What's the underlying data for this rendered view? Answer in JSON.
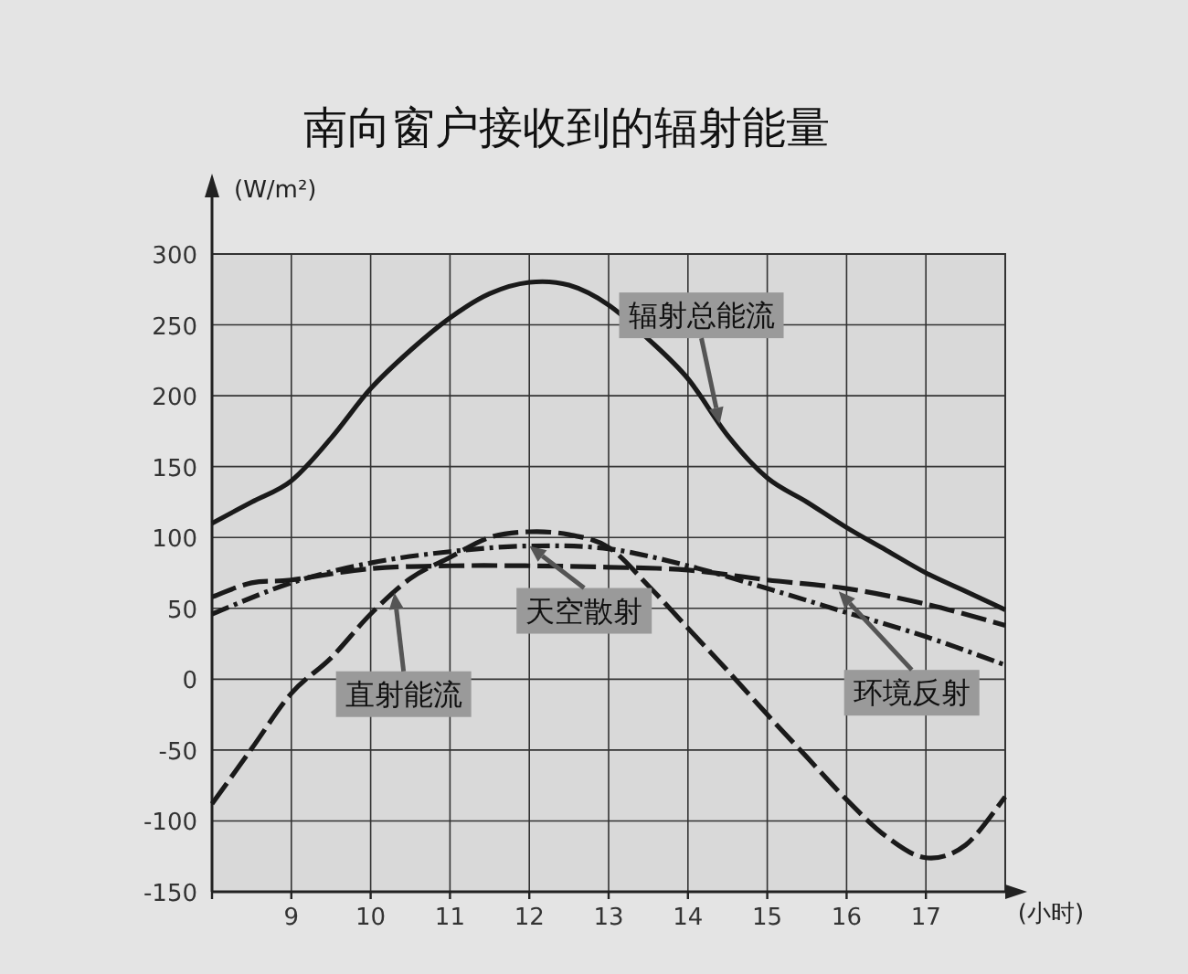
{
  "chart_data": {
    "type": "line",
    "title": "南向窗户接收到的辐射能量",
    "xlabel": "(小时)",
    "ylabel": "(W/m²)",
    "xlim": [
      8,
      18
    ],
    "ylim": [
      -150,
      300
    ],
    "xticks": [
      {
        "value": 8,
        "label": null
      },
      9,
      10,
      11,
      12,
      13,
      14,
      15,
      16,
      17
    ],
    "yticks": [
      -150,
      -100,
      -50,
      0,
      50,
      100,
      150,
      200,
      250,
      300
    ],
    "grid": true,
    "series": [
      {
        "color": "#1a1a1a",
        "line_style": "solid",
        "x": [
          8,
          8.5,
          9,
          9.5,
          10,
          10.5,
          11,
          11.5,
          12,
          12.5,
          13,
          13.5,
          14,
          14.5,
          15,
          15.5,
          16,
          16.5,
          17,
          17.5,
          18
        ],
        "values": [
          110,
          125,
          140,
          170,
          205,
          232,
          255,
          272,
          280,
          278,
          264,
          240,
          212,
          172,
          142,
          125,
          107,
          91,
          75,
          62,
          49
        ]
      },
      {
        "color": "#1a1a1a",
        "line_style": "dashed",
        "x": [
          8,
          8.5,
          9,
          9.5,
          10,
          10.5,
          11,
          11.5,
          12,
          12.5,
          13,
          13.5,
          14,
          14.5,
          15,
          15.5,
          16,
          16.5,
          17,
          17.5,
          18
        ],
        "values": [
          -88,
          -49,
          -10,
          15,
          46,
          71,
          86,
          100,
          104,
          102,
          93,
          66,
          36,
          6,
          -25,
          -55,
          -85,
          -111,
          -126,
          -117,
          -83
        ]
      },
      {
        "color": "#1a1a1a",
        "line_style": "dashed",
        "x": [
          8,
          8.5,
          9,
          10,
          11,
          12,
          13,
          14,
          15,
          16,
          17,
          18
        ],
        "values": [
          58,
          68,
          70,
          78,
          80,
          80,
          79,
          77,
          70,
          64,
          53,
          38
        ]
      },
      {
        "color": "#1a1a1a",
        "line_style": "dotted",
        "x": [
          8,
          9,
          10,
          11,
          12,
          13,
          14,
          15,
          16,
          17,
          18
        ],
        "values": [
          46,
          68,
          82,
          90,
          94,
          92,
          80,
          64,
          47,
          30,
          10
        ]
      }
    ],
    "annotations": [
      {
        "text": "辐射总能流",
        "x": 14.4,
        "y": 180
      },
      {
        "text": "天空散射",
        "x": 12,
        "y": 94
      },
      {
        "text": "直射能流",
        "x": 10.3,
        "y": 61
      },
      {
        "text": "环境反射",
        "x": 15.9,
        "y": 62
      }
    ]
  }
}
